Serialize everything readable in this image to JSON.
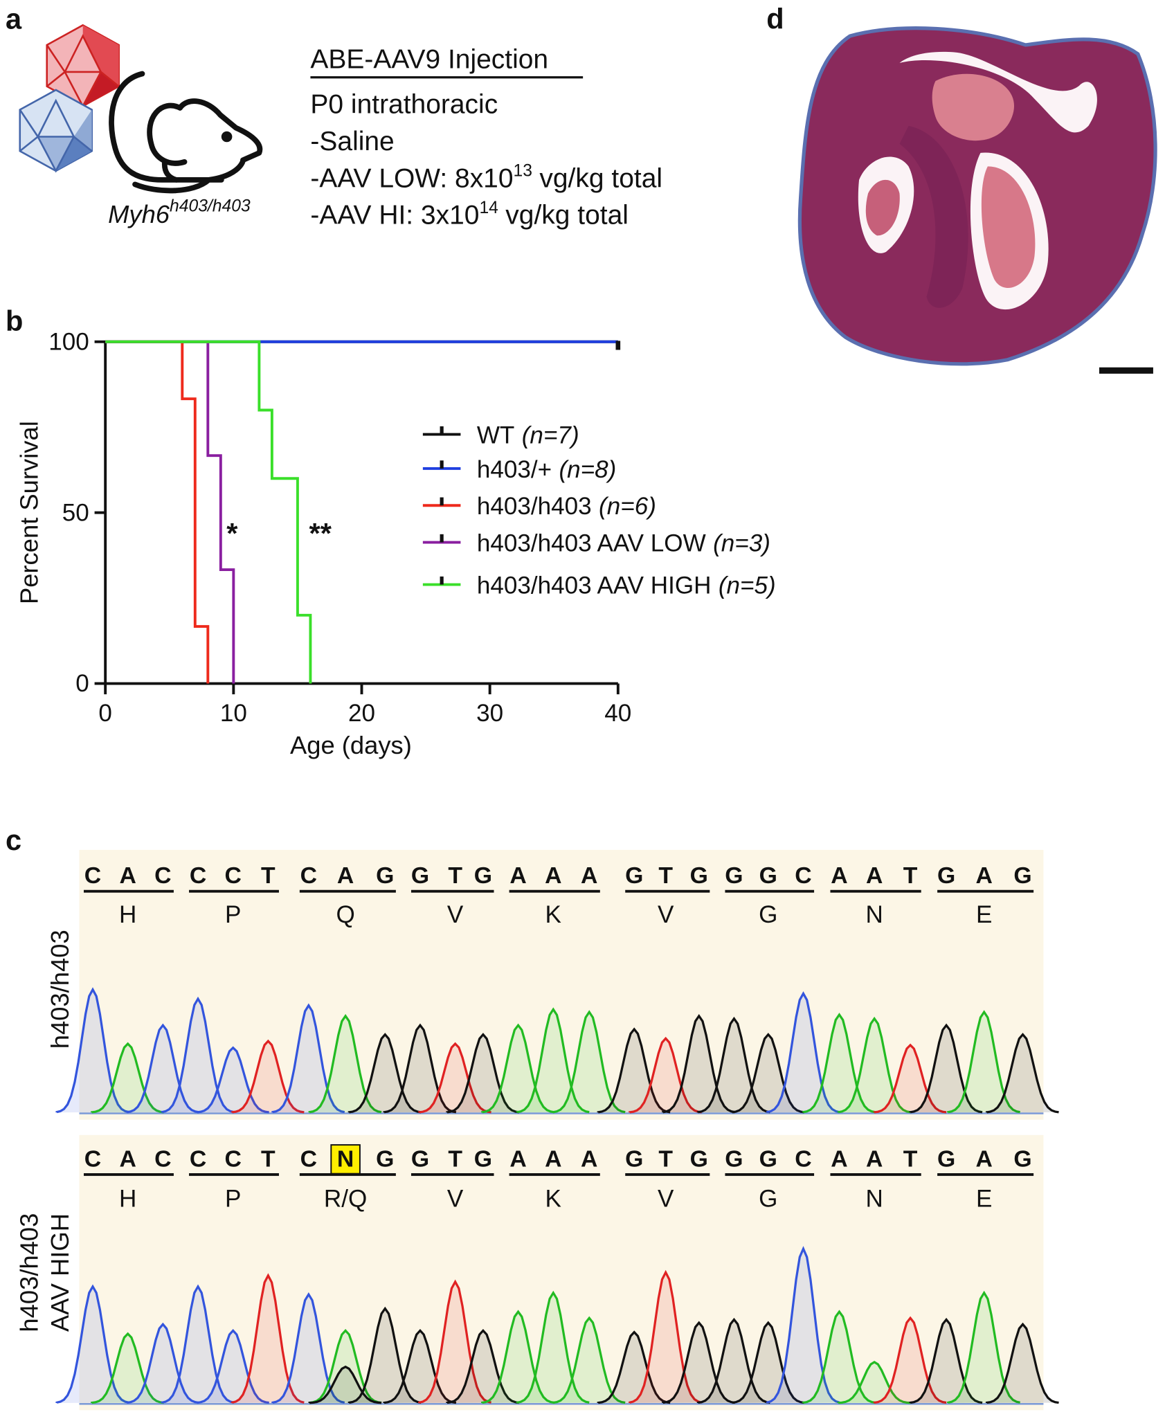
{
  "panel_labels": [
    "a",
    "b",
    "c",
    "d"
  ],
  "injection": {
    "title": "ABE-AAV9 Injection",
    "route": "P0 intrathoracic",
    "saline": "-Saline",
    "low": {
      "text": "-AAV LOW: 8x10",
      "exponent": "13",
      "unit": "vg/kg total"
    },
    "high": {
      "text": "-AAV HI: 3x10",
      "exponent": "14",
      "unit": "vg/kg total"
    },
    "mouse": {
      "gene": "Myh6",
      "genotype": "h403/h403"
    }
  },
  "chart_data": {
    "type": "step",
    "xlabel": "Age (days)",
    "ylabel": "Percent Survival",
    "xlim": [
      0,
      40
    ],
    "ylim": [
      0,
      100
    ],
    "xticks": [
      0,
      10,
      20,
      30,
      40
    ],
    "yticks": [
      0,
      50,
      100
    ],
    "annotations": [
      "*",
      "**"
    ],
    "series": [
      {
        "name": "WT",
        "n_label": "(n=7)",
        "color": "#111111",
        "x": [
          0,
          40
        ],
        "values": [
          100,
          100
        ]
      },
      {
        "name": "h403/+",
        "n_label": "(n=8)",
        "color": "#1f3fe0",
        "x": [
          0,
          40
        ],
        "values": [
          100,
          100
        ]
      },
      {
        "name": "h403/h403",
        "n_label": "(n=6)",
        "color": "#ee2a1c",
        "x": [
          0,
          6,
          7,
          8
        ],
        "values": [
          100,
          83.3,
          16.7,
          0
        ]
      },
      {
        "name": "h403/h403 AAV LOW",
        "n_label": "(n=3)",
        "color": "#8a1fa0",
        "x": [
          0,
          8,
          9,
          10
        ],
        "values": [
          100,
          66.7,
          33.3,
          0
        ]
      },
      {
        "name": "h403/h403 AAV HIGH",
        "n_label": "(n=5)",
        "color": "#3adf2a",
        "x": [
          0,
          12,
          13,
          15,
          16
        ],
        "values": [
          100,
          80,
          60,
          20,
          0
        ]
      }
    ]
  },
  "sequencing": {
    "base_colors": {
      "A": "#22bb22",
      "C": "#3355dd",
      "G": "#111111",
      "T": "#e02222"
    },
    "tracks": [
      {
        "label": [
          "h403/h403"
        ],
        "bases": [
          "C",
          "A",
          "C",
          "C",
          "C",
          "T",
          "C",
          "A",
          "G",
          "G",
          "T",
          "G",
          "A",
          "A",
          "A",
          "G",
          "T",
          "G",
          "G",
          "G",
          "C",
          "A",
          "A",
          "T",
          "G",
          "A",
          "G"
        ],
        "amino_acids": [
          "H",
          "P",
          "Q",
          "V",
          "K",
          "V",
          "G",
          "N",
          "E"
        ],
        "peaks": [
          93,
          52,
          66,
          86,
          49,
          54,
          81,
          73,
          59,
          66,
          52,
          59,
          66,
          78,
          76,
          63,
          56,
          73,
          71,
          59,
          90,
          74,
          71,
          51,
          66,
          76,
          59
        ]
      },
      {
        "label": [
          "h403/h403",
          "AAV HIGH"
        ],
        "bases": [
          "C",
          "A",
          "C",
          "C",
          "C",
          "T",
          "C",
          "N",
          "G",
          "G",
          "T",
          "G",
          "A",
          "A",
          "A",
          "G",
          "T",
          "G",
          "G",
          "G",
          "C",
          "A",
          "A",
          "T",
          "G",
          "A",
          "G"
        ],
        "amino_acids": [
          "H",
          "P",
          "R/Q",
          "V",
          "K",
          "V",
          "G",
          "N",
          "E"
        ],
        "peaks": [
          74,
          44,
          50,
          74,
          46,
          81,
          69,
          null,
          60,
          46,
          77,
          46,
          58,
          70,
          54,
          45,
          83,
          51,
          53,
          51,
          98,
          58,
          26,
          54,
          53,
          70,
          50
        ],
        "n_peaks": {
          "A": 46,
          "G": 23
        }
      }
    ]
  }
}
